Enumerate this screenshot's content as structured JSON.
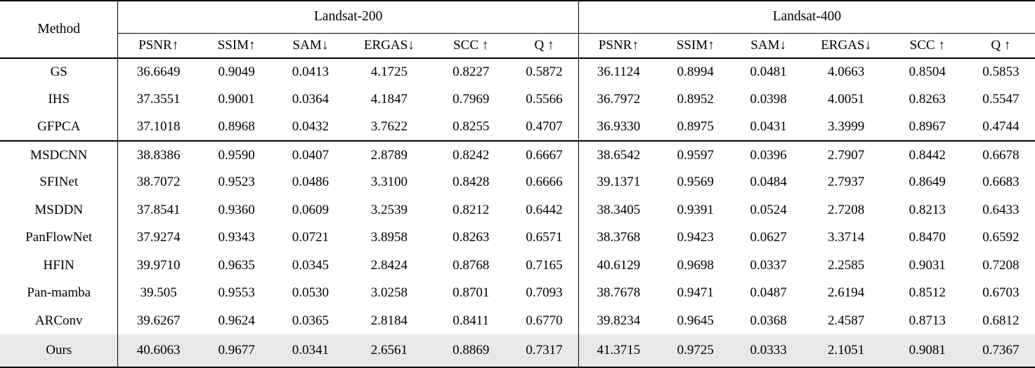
{
  "table": {
    "method_header": "Method",
    "groups": [
      {
        "label": "Landsat-200",
        "columns": [
          "PSNR↑",
          "SSIM↑",
          "SAM↓",
          "ERGAS↓",
          "SCC ↑",
          "Q ↑"
        ]
      },
      {
        "label": "Landsat-400",
        "columns": [
          "PSNR↑",
          "SSIM↑",
          "SAM↓",
          "ERGAS↓",
          "SCC ↑",
          "Q ↑"
        ]
      }
    ],
    "sections": [
      {
        "name": "classical",
        "highlight": false,
        "bold_values": false,
        "rows": [
          {
            "method": "GS",
            "values": [
              "36.6649",
              "0.9049",
              "0.0413",
              "4.1725",
              "0.8227",
              "0.5872",
              "36.1124",
              "0.8994",
              "0.0481",
              "4.0663",
              "0.8504",
              "0.5853"
            ]
          },
          {
            "method": "IHS",
            "values": [
              "37.3551",
              "0.9001",
              "0.0364",
              "4.1847",
              "0.7969",
              "0.5566",
              "36.7972",
              "0.8952",
              "0.0398",
              "4.0051",
              "0.8263",
              "0.5547"
            ]
          },
          {
            "method": "GFPCA",
            "values": [
              "37.1018",
              "0.8968",
              "0.0432",
              "3.7622",
              "0.8255",
              "0.4707",
              "36.9330",
              "0.8975",
              "0.0431",
              "3.3999",
              "0.8967",
              "0.4744"
            ]
          }
        ]
      },
      {
        "name": "deep-learning",
        "separator_above": true,
        "highlight": false,
        "bold_values": false,
        "rows": [
          {
            "method": "MSDCNN",
            "values": [
              "38.8386",
              "0.9590",
              "0.0407",
              "2.8789",
              "0.8242",
              "0.6667",
              "38.6542",
              "0.9597",
              "0.0396",
              "2.7907",
              "0.8442",
              "0.6678"
            ]
          },
          {
            "method": "SFINet",
            "values": [
              "38.7072",
              "0.9523",
              "0.0486",
              "3.3100",
              "0.8428",
              "0.6666",
              "39.1371",
              "0.9569",
              "0.0484",
              "2.7937",
              "0.8649",
              "0.6683"
            ]
          },
          {
            "method": "MSDDN",
            "values": [
              "37.8541",
              "0.9360",
              "0.0609",
              "3.2539",
              "0.8212",
              "0.6442",
              "38.3405",
              "0.9391",
              "0.0524",
              "2.7208",
              "0.8213",
              "0.6433"
            ]
          },
          {
            "method": "PanFlowNet",
            "values": [
              "37.9274",
              "0.9343",
              "0.0721",
              "3.8958",
              "0.8263",
              "0.6571",
              "38.3768",
              "0.9423",
              "0.0627",
              "3.3714",
              "0.8470",
              "0.6592"
            ]
          },
          {
            "method": "HFIN",
            "values": [
              "39.9710",
              "0.9635",
              "0.0345",
              "2.8424",
              "0.8768",
              "0.7165",
              "40.6129",
              "0.9698",
              "0.0337",
              "2.2585",
              "0.9031",
              "0.7208"
            ]
          },
          {
            "method": "Pan-mamba",
            "values": [
              "39.505",
              "0.9553",
              "0.0530",
              "3.0258",
              "0.8701",
              "0.7093",
              "38.7678",
              "0.9471",
              "0.0487",
              "2.6194",
              "0.8512",
              "0.6703"
            ]
          },
          {
            "method": "ARConv",
            "values": [
              "39.6267",
              "0.9624",
              "0.0365",
              "2.8184",
              "0.8411",
              "0.6770",
              "39.8234",
              "0.9645",
              "0.0368",
              "2.4587",
              "0.8713",
              "0.6812"
            ]
          }
        ]
      },
      {
        "name": "ours",
        "separator_above": false,
        "highlight": true,
        "bold_values": true,
        "rows": [
          {
            "method": "Ours",
            "values": [
              "40.6063",
              "0.9677",
              "0.0341",
              "2.6561",
              "0.8869",
              "0.7317",
              "41.3715",
              "0.9725",
              "0.0333",
              "2.1051",
              "0.9081",
              "0.7367"
            ]
          }
        ]
      }
    ]
  },
  "colors": {
    "background": "#ffffff",
    "text": "#000000",
    "border": "#000000",
    "highlight_row": "#e8e8e8"
  }
}
